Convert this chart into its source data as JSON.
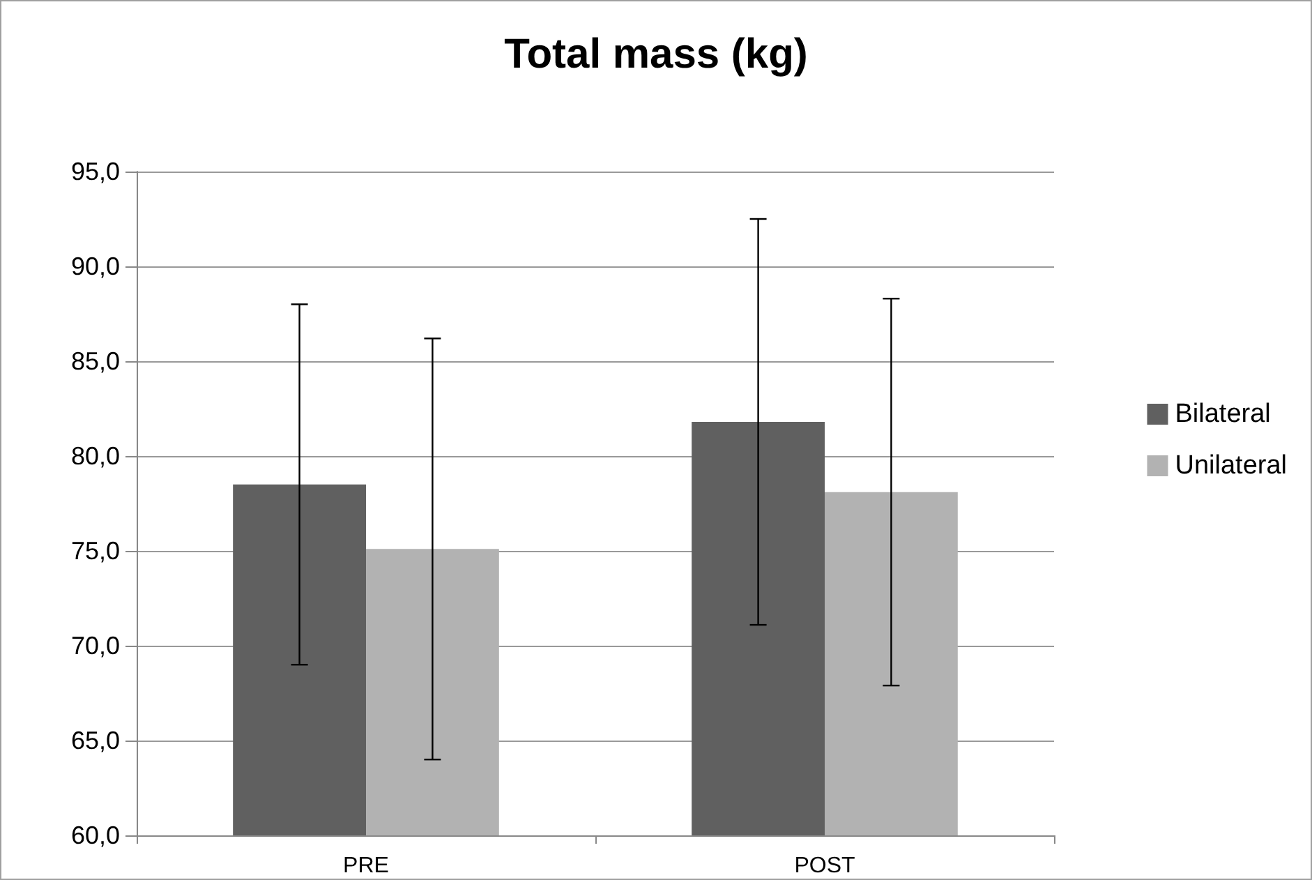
{
  "chart_data": {
    "type": "bar",
    "title": "Total mass (kg)",
    "categories": [
      "PRE",
      "POST"
    ],
    "series": [
      {
        "name": "Bilateral",
        "color": "#606060",
        "values": [
          78.5,
          81.8
        ],
        "errors": [
          9.5,
          10.7
        ]
      },
      {
        "name": "Unilateral",
        "color": "#b2b2b2",
        "values": [
          75.1,
          78.1
        ],
        "errors": [
          11.1,
          10.2
        ]
      }
    ],
    "ylim": [
      60,
      95
    ],
    "yticks": [
      {
        "value": 60,
        "label": "60,0"
      },
      {
        "value": 65,
        "label": "65,0"
      },
      {
        "value": 70,
        "label": "70,0"
      },
      {
        "value": 75,
        "label": "75,0"
      },
      {
        "value": 80,
        "label": "80,0"
      },
      {
        "value": 85,
        "label": "85,0"
      },
      {
        "value": 90,
        "label": "90,0"
      },
      {
        "value": 95,
        "label": "95,0"
      }
    ],
    "grid": "y",
    "legend": "right"
  }
}
